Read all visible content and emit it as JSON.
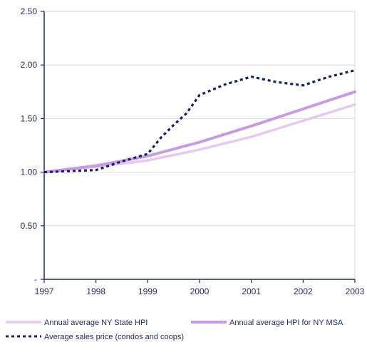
{
  "chart_data": {
    "type": "line",
    "x": [
      1997,
      1998,
      1999,
      2000,
      2001,
      2002,
      2003
    ],
    "xlim": [
      1997,
      2003
    ],
    "ylim": [
      0,
      2.5
    ],
    "yticks": [
      0,
      0.5,
      1.0,
      1.5,
      2.0,
      2.5
    ],
    "ytick_labels": [
      "-",
      "0.50",
      "1.00",
      "1.50",
      "2.00",
      "2.50"
    ],
    "xtick_labels": [
      "1997",
      "1998",
      "1999",
      "2000",
      "2001",
      "2002",
      "2003"
    ],
    "grid": true,
    "legend_position": "bottom",
    "series": [
      {
        "name": "Annual average NY State HPI",
        "color": "#e6c8f0",
        "style": "solid-thick",
        "x": [
          1997,
          1998,
          1999,
          2000,
          2001,
          2002,
          2003
        ],
        "values": [
          1.0,
          1.05,
          1.11,
          1.21,
          1.33,
          1.48,
          1.63
        ]
      },
      {
        "name": "Annual average HPI for NY MSA",
        "color": "#c79be0",
        "style": "solid-thick",
        "x": [
          1997,
          1998,
          1999,
          2000,
          2001,
          2002,
          2003
        ],
        "values": [
          1.0,
          1.06,
          1.15,
          1.28,
          1.43,
          1.59,
          1.75
        ]
      },
      {
        "name": "Average sales price (condos and coops)",
        "color": "#14215c",
        "style": "dotted",
        "x": [
          1997,
          1997.5,
          1998,
          1998.5,
          1999,
          1999.25,
          1999.5,
          1999.75,
          2000,
          2000.5,
          2001,
          2001.5,
          2002,
          2002.5,
          2003
        ],
        "values": [
          1.0,
          1.01,
          1.02,
          1.1,
          1.17,
          1.32,
          1.44,
          1.55,
          1.72,
          1.82,
          1.89,
          1.84,
          1.81,
          1.89,
          1.95
        ]
      }
    ]
  }
}
